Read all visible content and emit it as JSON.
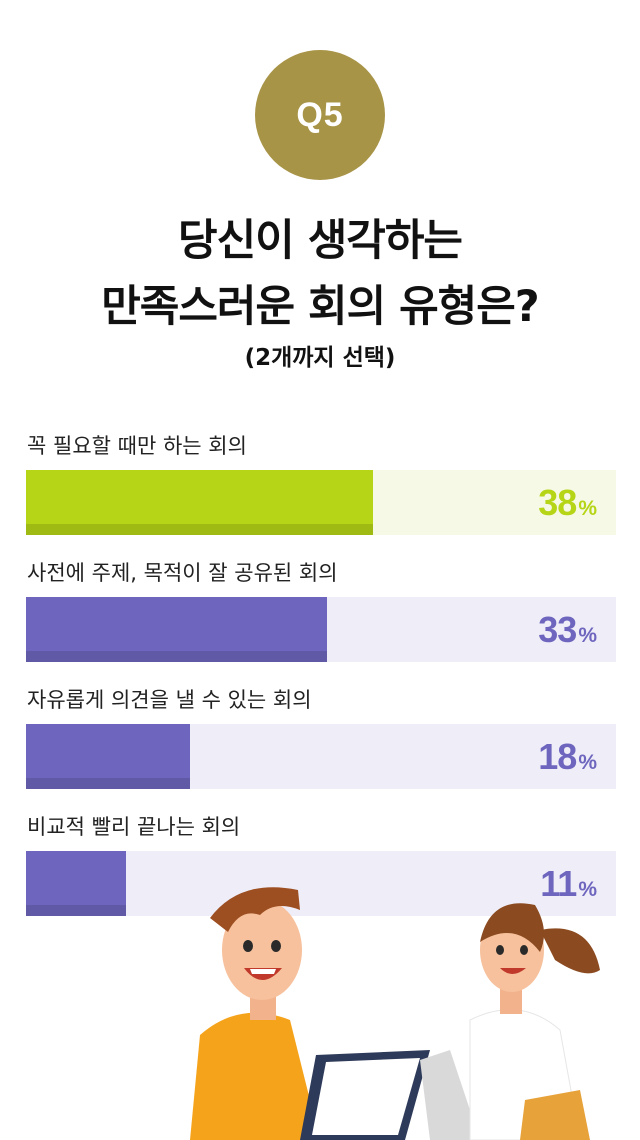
{
  "badge": {
    "text": "Q5",
    "color": "#a89447"
  },
  "header": {
    "title_line1": "당신이 생각하는",
    "title_line2": "만족스러운 회의 유형은?",
    "subtitle": "(2개까지 선택)"
  },
  "chart_data": {
    "type": "bar",
    "orientation": "horizontal",
    "title": "당신이 생각하는 만족스러운 회의 유형은?",
    "categories": [
      "꼭 필요할 때만 하는 회의",
      "사전에 주제, 목적이 잘 공유된 회의",
      "자유롭게 의견을 낼 수 있는 회의",
      "비교적 빨리 끝나는 회의"
    ],
    "values": [
      38,
      33,
      18,
      11
    ],
    "unit": "%",
    "xlim": [
      0,
      100
    ],
    "colors": [
      "#b5d516",
      "#6e66be",
      "#6e66be",
      "#6e66be"
    ],
    "track_colors": [
      "#f6f9e6",
      "#efeef8",
      "#efeef8",
      "#efeef8"
    ]
  }
}
